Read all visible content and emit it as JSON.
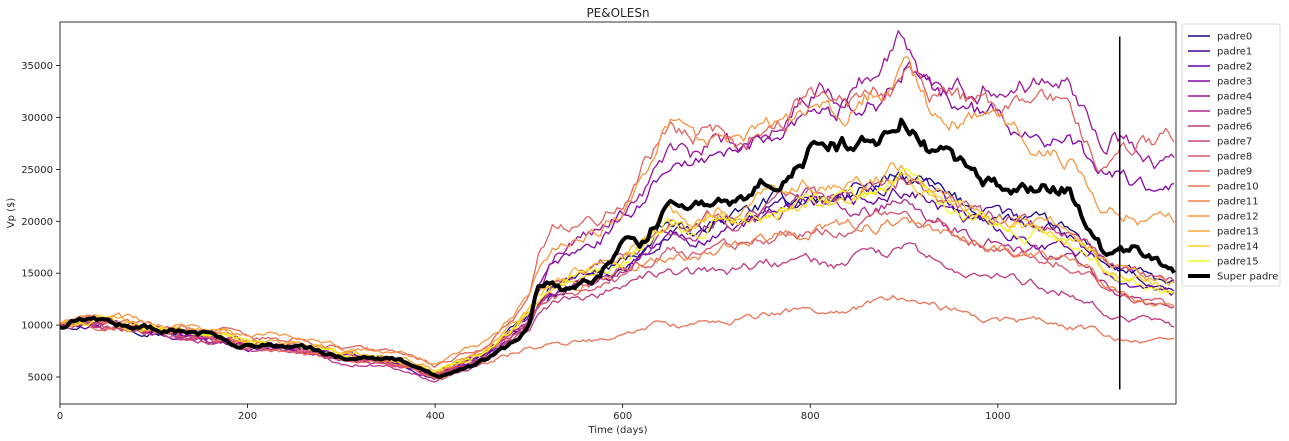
{
  "chart_data": {
    "type": "line",
    "title": "PE&OLESn",
    "xlabel": "Time (days)",
    "ylabel": "Vp ($)",
    "xlim": [
      0,
      1190
    ],
    "ylim": [
      2400,
      39200
    ],
    "xticks": [
      0,
      200,
      400,
      600,
      800,
      1000
    ],
    "yticks": [
      5000,
      10000,
      15000,
      20000,
      25000,
      30000,
      35000
    ],
    "grid": false,
    "legend_position": "outside-right",
    "x": [
      0,
      25,
      50,
      75,
      100,
      125,
      150,
      175,
      200,
      225,
      250,
      275,
      300,
      325,
      350,
      375,
      400,
      425,
      450,
      475,
      500,
      510,
      525,
      550,
      575,
      600,
      625,
      650,
      675,
      700,
      725,
      750,
      775,
      800,
      825,
      850,
      875,
      900,
      925,
      950,
      975,
      1000,
      1025,
      1050,
      1075,
      1100,
      1115,
      1125,
      1150,
      1175,
      1190
    ],
    "series": [
      {
        "name": "padre0",
        "color": "#0d0887",
        "width": 1.3,
        "values": [
          10000,
          10400,
          10300,
          9900,
          9600,
          9200,
          8900,
          8800,
          8100,
          8000,
          7900,
          7600,
          7000,
          6900,
          6700,
          6100,
          5300,
          6300,
          7200,
          8900,
          10800,
          12500,
          13500,
          14500,
          15000,
          16000,
          17500,
          19500,
          19000,
          20000,
          20500,
          21500,
          22000,
          22500,
          22000,
          23000,
          23500,
          24000,
          23500,
          22000,
          21000,
          20500,
          20000,
          19500,
          19000,
          17500,
          16000,
          15500,
          15000,
          14000,
          13800
        ]
      },
      {
        "name": "padre1",
        "color": "#3e049c",
        "width": 1.3,
        "values": [
          10000,
          10200,
          10100,
          9800,
          9500,
          9100,
          8800,
          8600,
          8000,
          7900,
          7700,
          7400,
          6800,
          6700,
          6500,
          5900,
          5000,
          6000,
          6900,
          8600,
          10500,
          12200,
          13200,
          14200,
          14800,
          15800,
          17200,
          19200,
          18800,
          19800,
          20200,
          21200,
          21500,
          22500,
          22300,
          23200,
          23500,
          24500,
          23200,
          21700,
          20600,
          20200,
          19600,
          19100,
          18600,
          17200,
          15700,
          15200,
          14600,
          13600,
          13200
        ]
      },
      {
        "name": "padre2",
        "color": "#6300a7",
        "width": 1.3,
        "values": [
          10000,
          10000,
          9900,
          9600,
          9300,
          8900,
          8600,
          8400,
          7800,
          7700,
          7500,
          7200,
          6600,
          6500,
          6300,
          5700,
          4900,
          5800,
          6700,
          8300,
          10300,
          11800,
          12700,
          13700,
          14300,
          15200,
          16800,
          18500,
          18000,
          18900,
          19400,
          20300,
          20600,
          21300,
          21000,
          21700,
          22000,
          23000,
          22000,
          20500,
          19700,
          19200,
          18700,
          18200,
          17600,
          16500,
          15100,
          14600,
          14100,
          13200,
          12900
        ]
      },
      {
        "name": "padre3",
        "color": "#8606a6",
        "width": 1.3,
        "values": [
          10000,
          10200,
          10100,
          9800,
          9500,
          9200,
          8900,
          8700,
          8100,
          8000,
          7800,
          7500,
          6900,
          6800,
          6600,
          6000,
          5200,
          6200,
          7100,
          8800,
          10700,
          13500,
          15800,
          17000,
          18000,
          20000,
          22500,
          26000,
          25000,
          27000,
          26500,
          28000,
          29500,
          31500,
          30500,
          31500,
          32000,
          34500,
          32500,
          32000,
          30500,
          30000,
          29000,
          28500,
          27500,
          25500,
          24500,
          24500,
          23500,
          22500,
          23000
        ]
      },
      {
        "name": "padre4",
        "color": "#9e169b",
        "width": 1.3,
        "values": [
          10000,
          10300,
          10200,
          9900,
          9600,
          9300,
          9000,
          8800,
          8200,
          8100,
          7900,
          7600,
          7000,
          6900,
          6700,
          6100,
          5300,
          6300,
          7300,
          9000,
          11000,
          14000,
          16500,
          18500,
          19500,
          21000,
          23500,
          27000,
          26000,
          27500,
          27000,
          28500,
          30500,
          32500,
          32000,
          33500,
          35000,
          37500,
          34000,
          34500,
          33000,
          33500,
          33000,
          34500,
          35500,
          30000,
          26500,
          28000,
          27500,
          26000,
          26500
        ]
      },
      {
        "name": "padre5",
        "color": "#b02a8f",
        "width": 1.3,
        "values": [
          10000,
          10100,
          10000,
          9700,
          9400,
          9000,
          8700,
          8500,
          7900,
          7800,
          7600,
          7300,
          6700,
          6600,
          6400,
          5800,
          5000,
          5900,
          6800,
          8400,
          10300,
          12000,
          13000,
          14000,
          14500,
          15500,
          17000,
          19000,
          18500,
          20000,
          19500,
          20500,
          21000,
          22000,
          21500,
          20500,
          21500,
          22500,
          21000,
          19500,
          18500,
          18000,
          17500,
          17000,
          16500,
          15200,
          13800,
          13300,
          12800,
          11800,
          11500
        ]
      },
      {
        "name": "padre6",
        "color": "#bf3984",
        "width": 1.3,
        "values": [
          10000,
          10000,
          9800,
          9500,
          9100,
          8700,
          8400,
          8200,
          7600,
          7500,
          7300,
          7000,
          6400,
          6300,
          6100,
          5500,
          4700,
          5500,
          6400,
          7900,
          9600,
          11000,
          11900,
          12700,
          13200,
          14000,
          14500,
          15000,
          14800,
          15300,
          15400,
          15800,
          16000,
          16200,
          15800,
          16200,
          16600,
          17200,
          16300,
          15400,
          14800,
          14500,
          14200,
          13800,
          13400,
          12400,
          11300,
          11000,
          10600,
          10000,
          9800
        ]
      },
      {
        "name": "padre7",
        "color": "#cc4778",
        "width": 1.3,
        "values": [
          10000,
          10200,
          10100,
          9800,
          9500,
          9100,
          8800,
          8600,
          8000,
          7900,
          7700,
          7400,
          6800,
          6700,
          6500,
          5900,
          5100,
          6000,
          7000,
          8600,
          10500,
          12500,
          13800,
          15000,
          15800,
          17000,
          18200,
          20500,
          19800,
          21000,
          20500,
          21500,
          22000,
          22800,
          22300,
          23000,
          23500,
          24500,
          23000,
          21500,
          20800,
          20300,
          19800,
          19300,
          18800,
          17500,
          16000,
          15500,
          15000,
          14200,
          14000
        ]
      },
      {
        "name": "padre8",
        "color": "#d8576b",
        "width": 1.3,
        "values": [
          10000,
          10100,
          10000,
          9700,
          9400,
          9000,
          8700,
          8500,
          7900,
          7800,
          7600,
          7300,
          6700,
          6600,
          6400,
          5800,
          5000,
          5800,
          6700,
          8200,
          10000,
          11500,
          12400,
          13300,
          13900,
          14600,
          15800,
          17000,
          16500,
          17500,
          17800,
          18500,
          18800,
          19500,
          19200,
          19800,
          20200,
          21000,
          20000,
          18800,
          18000,
          17600,
          17100,
          16700,
          16200,
          15000,
          13600,
          13200,
          12700,
          12000,
          11800
        ]
      },
      {
        "name": "padre9",
        "color": "#e16462",
        "width": 1.3,
        "values": [
          10000,
          10500,
          10600,
          10300,
          10000,
          9800,
          9600,
          9400,
          8900,
          8800,
          8600,
          8300,
          7700,
          7600,
          7400,
          6800,
          5900,
          7000,
          8000,
          9800,
          12000,
          16000,
          19000,
          20000,
          20500,
          22000,
          26000,
          30000,
          28000,
          28500,
          27500,
          29500,
          30500,
          31500,
          31000,
          31500,
          32500,
          33500,
          32500,
          32000,
          31500,
          31000,
          31000,
          31000,
          31000,
          27000,
          25000,
          26500,
          27500,
          28000,
          28200
        ]
      },
      {
        "name": "padre10",
        "color": "#ea7457",
        "width": 1.3,
        "values": [
          10000,
          10100,
          10000,
          9700,
          9400,
          9000,
          8700,
          8400,
          7800,
          7700,
          7500,
          7200,
          6600,
          6500,
          6300,
          5700,
          4800,
          5500,
          6200,
          7000,
          7800,
          8000,
          8100,
          8300,
          8600,
          9000,
          9800,
          10200,
          10000,
          10500,
          10700,
          11000,
          11300,
          11600,
          11400,
          11800,
          12100,
          12800,
          12200,
          11500,
          11000,
          10700,
          10400,
          10200,
          9900,
          9400,
          9000,
          8800,
          8600,
          8400,
          8300
        ]
      },
      {
        "name": "padre11",
        "color": "#f2844b",
        "width": 1.3,
        "values": [
          10000,
          10300,
          10200,
          9900,
          9600,
          9300,
          9000,
          8800,
          8200,
          8100,
          7900,
          7600,
          7000,
          6900,
          6700,
          6100,
          5300,
          6300,
          7200,
          8800,
          10800,
          12000,
          12800,
          13700,
          14200,
          15000,
          16000,
          17000,
          16600,
          17400,
          17700,
          18300,
          18600,
          19200,
          18900,
          19400,
          19800,
          20500,
          19600,
          18600,
          17900,
          17500,
          17000,
          16600,
          16100,
          14900,
          13500,
          13100,
          12600,
          11900,
          11700
        ]
      },
      {
        "name": "padre12",
        "color": "#f89540",
        "width": 1.3,
        "values": [
          10000,
          10600,
          10800,
          10500,
          10200,
          10000,
          9800,
          9600,
          9100,
          9000,
          8800,
          8500,
          7900,
          7800,
          7600,
          7000,
          6100,
          7200,
          8200,
          10100,
          12500,
          15500,
          17500,
          19000,
          19500,
          21000,
          24500,
          29500,
          27000,
          28000,
          27000,
          28500,
          30000,
          31500,
          30500,
          31500,
          32500,
          34500,
          31500,
          30500,
          29500,
          28500,
          27500,
          27000,
          26000,
          23500,
          21500,
          21000,
          20500,
          19800,
          20000
        ]
      },
      {
        "name": "padre13",
        "color": "#fca636",
        "width": 1.3,
        "values": [
          10000,
          10400,
          10500,
          10200,
          9900,
          9600,
          9300,
          9100,
          8500,
          8400,
          8200,
          7900,
          7300,
          7200,
          7000,
          6400,
          5600,
          6600,
          7600,
          9300,
          11300,
          13000,
          14200,
          15300,
          16000,
          17200,
          18800,
          21000,
          20300,
          21400,
          21000,
          22000,
          22500,
          23500,
          23000,
          23700,
          24200,
          25200,
          23700,
          22200,
          21300,
          20800,
          20300,
          19800,
          19200,
          17800,
          16200,
          15700,
          15200,
          14300,
          14000
        ]
      },
      {
        "name": "padre14",
        "color": "#fcce25",
        "width": 1.3,
        "values": [
          10000,
          10300,
          10400,
          10100,
          9800,
          9500,
          9200,
          9000,
          8400,
          8300,
          8100,
          7800,
          7200,
          7100,
          6900,
          6300,
          5500,
          6500,
          7500,
          9100,
          11100,
          12700,
          13800,
          14800,
          15400,
          16500,
          18000,
          20000,
          19400,
          20500,
          20200,
          21200,
          21700,
          22600,
          22100,
          22800,
          23300,
          24200,
          22800,
          21300,
          20500,
          20000,
          19500,
          19000,
          18400,
          17000,
          15500,
          15000,
          14500,
          13700,
          13400
        ]
      },
      {
        "name": "padre15",
        "color": "#f0f921",
        "width": 1.3,
        "values": [
          10000,
          10200,
          10300,
          10000,
          9700,
          9400,
          9100,
          8900,
          8300,
          8200,
          8000,
          7700,
          7100,
          7000,
          6800,
          6200,
          5400,
          6400,
          7300,
          8900,
          10900,
          12300,
          13300,
          14300,
          14900,
          16000,
          17500,
          19500,
          18900,
          20000,
          19700,
          20700,
          21200,
          22000,
          21600,
          22300,
          22800,
          23600,
          22300,
          20900,
          20100,
          19600,
          19100,
          18600,
          18000,
          16700,
          15200,
          14700,
          14200,
          13400,
          13100
        ]
      },
      {
        "name": "Super padre",
        "color": "#000000",
        "width": 4,
        "values": [
          10000,
          10500,
          10300,
          10000,
          9500,
          9500,
          9300,
          9000,
          8100,
          8000,
          7900,
          7500,
          6800,
          6800,
          6700,
          6200,
          5000,
          5600,
          6500,
          7500,
          9500,
          13500,
          14000,
          13000,
          15000,
          18000,
          18000,
          22500,
          21000,
          22000,
          22500,
          24000,
          25500,
          27000,
          27000,
          27500,
          28500,
          30000,
          27000,
          25500,
          24000,
          23500,
          22800,
          23000,
          23500,
          19000,
          16500,
          17000,
          17500,
          16000,
          14500
        ]
      }
    ],
    "vertical_line": {
      "x": 1130,
      "y_from": 3800,
      "y_to": 37800,
      "color": "#000000"
    }
  }
}
